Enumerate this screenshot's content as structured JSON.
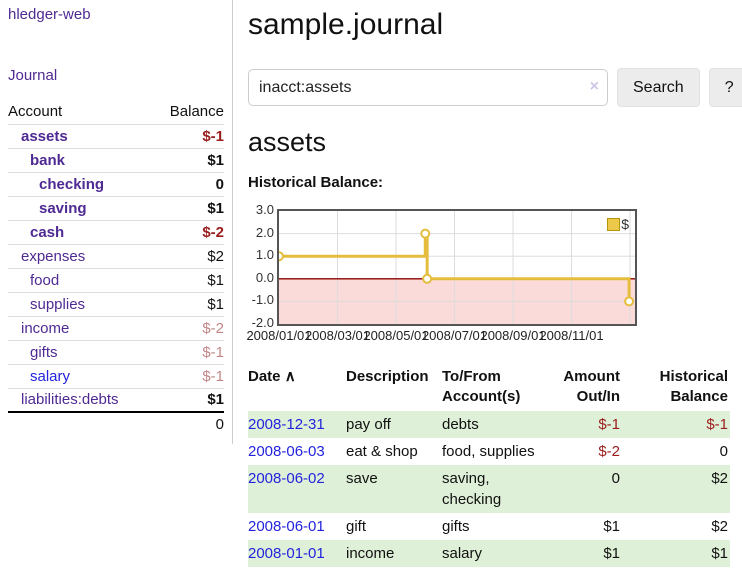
{
  "sidebar": {
    "brand": "hledger-web",
    "journal_label": "Journal",
    "table": {
      "account_header": "Account",
      "balance_header": "Balance",
      "accounts": [
        {
          "name": "assets",
          "indent": 1,
          "bold": true,
          "balance": "$-1",
          "balance_style": "neg",
          "link_color": "purple"
        },
        {
          "name": "bank",
          "indent": 2,
          "bold": true,
          "balance": "$1",
          "balance_style": "pos",
          "link_color": "purple"
        },
        {
          "name": "checking",
          "indent": 3,
          "bold": true,
          "balance": "0",
          "balance_style": "pos",
          "link_color": "purple"
        },
        {
          "name": "saving",
          "indent": 3,
          "bold": true,
          "balance": "$1",
          "balance_style": "pos",
          "link_color": "purple"
        },
        {
          "name": "cash",
          "indent": 2,
          "bold": true,
          "balance": "$-2",
          "balance_style": "neg",
          "link_color": "purple"
        },
        {
          "name": "expenses",
          "indent": 1,
          "bold": false,
          "balance": "$2",
          "balance_style": "posplain",
          "link_color": "purple"
        },
        {
          "name": "food",
          "indent": 2,
          "bold": false,
          "balance": "$1",
          "balance_style": "posplain",
          "link_color": "purple"
        },
        {
          "name": "supplies",
          "indent": 2,
          "bold": false,
          "balance": "$1",
          "balance_style": "posplain",
          "link_color": "purple"
        },
        {
          "name": "income",
          "indent": 1,
          "bold": false,
          "balance": "$-2",
          "balance_style": "rosy",
          "link_color": "purple"
        },
        {
          "name": "gifts",
          "indent": 2,
          "bold": false,
          "balance": "$-1",
          "balance_style": "rosy",
          "link_color": "purple"
        },
        {
          "name": "salary",
          "indent": 2,
          "bold": false,
          "balance": "$-1",
          "balance_style": "rosy",
          "link_color": "blue"
        },
        {
          "name": "liabilities:debts",
          "indent": 1,
          "bold": false,
          "balance": "$1",
          "balance_style": "pos",
          "link_color": "purple"
        }
      ],
      "total": "0"
    }
  },
  "header": {
    "title": "sample.journal"
  },
  "search": {
    "value": "inacct:assets",
    "clear_icon": "×",
    "button_label": "Search",
    "help_label": "?"
  },
  "main": {
    "account_title": "assets",
    "chart_label": "Historical Balance:"
  },
  "chart_data": {
    "type": "line",
    "style": "step-after",
    "title": "Historical Balance",
    "legend": "$",
    "legend_position": "top-right",
    "grid": true,
    "ylim": [
      -2,
      3
    ],
    "y_ticks": [
      "3.0",
      "2.0",
      "1.0",
      "0.0",
      "-1.0",
      "-2.0"
    ],
    "x_ticks": [
      "2008/01/01",
      "2008/03/01",
      "2008/05/01",
      "2008/07/01",
      "2008/09/01",
      "2008/11/01"
    ],
    "series": [
      {
        "name": "$",
        "points": [
          [
            "2008-01-01",
            1
          ],
          [
            "2008-06-01",
            2
          ],
          [
            "2008-06-03",
            0
          ],
          [
            "2008-12-31",
            -1
          ]
        ]
      }
    ],
    "colors": {
      "line": "#e5bd3e",
      "marker_fill": "#ffffff",
      "negative_region": "#fbdada",
      "zero_line": "#8b0000",
      "gridline": "#dddddd",
      "border": "#555555"
    }
  },
  "transactions": {
    "headers": {
      "date": "Date",
      "sort_icon": "∧",
      "description": "Description",
      "accounts": "To/From Account(s)",
      "amount": "Amount Out/In",
      "balance": "Historical Balance"
    },
    "rows": [
      {
        "date": "2008-12-31",
        "description": "pay off",
        "accounts": "debts",
        "amount": "$-1",
        "amount_neg": true,
        "balance": "$-1",
        "balance_neg": true
      },
      {
        "date": "2008-06-03",
        "description": "eat & shop",
        "accounts": "food, supplies",
        "amount": "$-2",
        "amount_neg": true,
        "balance": "0",
        "balance_neg": false
      },
      {
        "date": "2008-06-02",
        "description": "save",
        "accounts": "saving, checking",
        "amount": "0",
        "amount_neg": false,
        "balance": "$2",
        "balance_neg": false
      },
      {
        "date": "2008-06-01",
        "description": "gift",
        "accounts": "gifts",
        "amount": "$1",
        "amount_neg": false,
        "balance": "$2",
        "balance_neg": false
      },
      {
        "date": "2008-01-01",
        "description": "income",
        "accounts": "salary",
        "amount": "$1",
        "amount_neg": false,
        "balance": "$1",
        "balance_neg": false
      }
    ]
  },
  "colors": {
    "link_purple": "#4f2a93",
    "link_blue": "#2323dd",
    "negative": "#9b1c1c",
    "negative_muted": "#c28789",
    "row_highlight": "#dff0d8",
    "accent_gold": "#e5bd3e"
  }
}
